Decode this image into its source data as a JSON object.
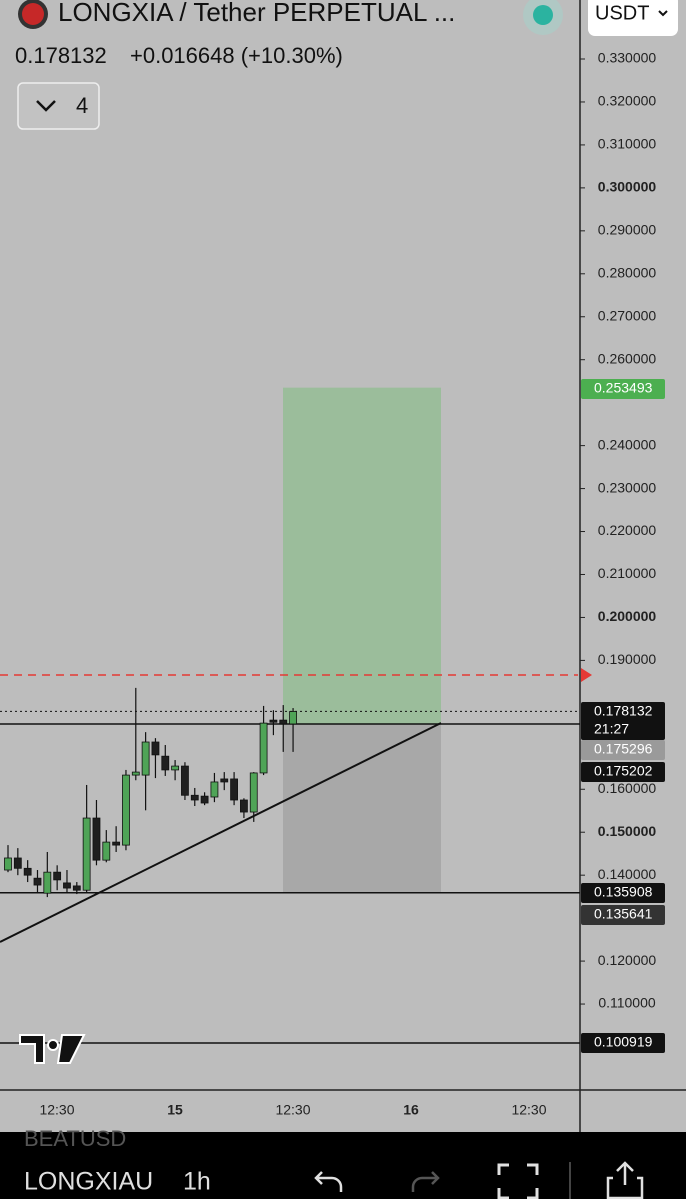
{
  "chart_data": {
    "type": "candlestick",
    "title": "LONGXIA / Tether PERPETUAL ...",
    "last_price": "0.178132",
    "change": "+0.016648 (+10.30%)",
    "indicator_count": "4",
    "currency": "USDT",
    "countdown": "21:27",
    "up_color": "#4fa457",
    "down_color": "#1f1f1f",
    "ylim": [
      0.1,
      0.3443
    ],
    "yticks": [
      {
        "value": 0.33,
        "label": "0.330000"
      },
      {
        "value": 0.32,
        "label": "0.320000"
      },
      {
        "value": 0.31,
        "label": "0.310000"
      },
      {
        "value": 0.3,
        "label": "0.300000",
        "bold": true
      },
      {
        "value": 0.29,
        "label": "0.290000"
      },
      {
        "value": 0.28,
        "label": "0.280000"
      },
      {
        "value": 0.27,
        "label": "0.270000"
      },
      {
        "value": 0.26,
        "label": "0.260000"
      },
      {
        "value": 0.24,
        "label": "0.240000"
      },
      {
        "value": 0.23,
        "label": "0.230000"
      },
      {
        "value": 0.22,
        "label": "0.220000"
      },
      {
        "value": 0.21,
        "label": "0.210000"
      },
      {
        "value": 0.2,
        "label": "0.200000",
        "bold": true
      },
      {
        "value": 0.19,
        "label": "0.190000"
      },
      {
        "value": 0.16,
        "label": "0.160000"
      },
      {
        "value": 0.15,
        "label": "0.150000",
        "bold": true
      },
      {
        "value": 0.14,
        "label": "0.140000"
      },
      {
        "value": 0.12,
        "label": "0.120000"
      },
      {
        "value": 0.11,
        "label": "0.110000"
      }
    ],
    "xtick_labels": [
      "12:30",
      "15",
      "12:30",
      "16",
      "12:30"
    ],
    "candles": [
      [
        0.1412,
        0.147,
        0.1407,
        0.144
      ],
      [
        0.144,
        0.1463,
        0.14,
        0.1416
      ],
      [
        0.1416,
        0.1435,
        0.1384,
        0.14
      ],
      [
        0.1393,
        0.1412,
        0.1358,
        0.1377
      ],
      [
        0.1358,
        0.1454,
        0.1349,
        0.1407
      ],
      [
        0.1407,
        0.1423,
        0.1365,
        0.1389
      ],
      [
        0.1382,
        0.1412,
        0.1358,
        0.137
      ],
      [
        0.1375,
        0.1384,
        0.1356,
        0.1365
      ],
      [
        0.1365,
        0.161,
        0.1358,
        0.1533
      ],
      [
        0.1533,
        0.1575,
        0.1423,
        0.1435
      ],
      [
        0.1435,
        0.1505,
        0.143,
        0.1477
      ],
      [
        0.1477,
        0.1514,
        0.1454,
        0.147
      ],
      [
        0.147,
        0.1645,
        0.1458,
        0.1633
      ],
      [
        0.1633,
        0.1836,
        0.1621,
        0.164
      ],
      [
        0.1633,
        0.1733,
        0.1551,
        0.171
      ],
      [
        0.171,
        0.1719,
        0.1626,
        0.168
      ],
      [
        0.1677,
        0.1703,
        0.1631,
        0.1645
      ],
      [
        0.1645,
        0.1668,
        0.1621,
        0.1654
      ],
      [
        0.1654,
        0.1663,
        0.1575,
        0.1586
      ],
      [
        0.1586,
        0.1603,
        0.1561,
        0.1575
      ],
      [
        0.1584,
        0.1593,
        0.1563,
        0.1568
      ],
      [
        0.1582,
        0.1638,
        0.157,
        0.1617
      ],
      [
        0.1624,
        0.164,
        0.1598,
        0.1617
      ],
      [
        0.1624,
        0.164,
        0.1563,
        0.1575
      ],
      [
        0.1575,
        0.1579,
        0.1533,
        0.1547
      ],
      [
        0.1547,
        0.164,
        0.1524,
        0.1638
      ],
      [
        0.1638,
        0.1794,
        0.1633,
        0.1754
      ],
      [
        0.1761,
        0.1784,
        0.1726,
        0.1756
      ],
      [
        0.1761,
        0.1796,
        0.1687,
        0.1752
      ],
      [
        0.1752,
        0.1789,
        0.1687,
        0.1781
      ]
    ],
    "price_tags": [
      {
        "value": 0.253493,
        "color": "#4caf50"
      },
      {
        "value": 0.178132,
        "color": "#111111"
      },
      {
        "value": 0.175296,
        "color": "#9a9a9a"
      },
      {
        "value": 0.175202,
        "color": "#111111"
      },
      {
        "value": 0.135908,
        "color": "#111111"
      },
      {
        "value": 0.135641,
        "color": "#333333"
      },
      {
        "value": 0.100919,
        "color": "#111111"
      }
    ],
    "symbol_tab": "LONGXIAU",
    "interval": "1h",
    "background_symbol": "BEATUSD"
  }
}
